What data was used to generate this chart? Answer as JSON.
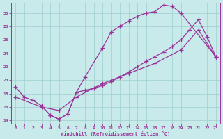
{
  "xlabel": "Windchill (Refroidissement éolien,°C)",
  "background_color": "#c8eaea",
  "grid_color": "#9ecece",
  "line_color": "#993399",
  "xlim": [
    -0.5,
    23.5
  ],
  "ylim": [
    13.5,
    31.5
  ],
  "xticks": [
    0,
    1,
    2,
    3,
    4,
    5,
    6,
    7,
    8,
    9,
    10,
    11,
    12,
    13,
    14,
    15,
    16,
    17,
    18,
    19,
    20,
    21,
    22,
    23
  ],
  "yticks": [
    14,
    16,
    18,
    20,
    22,
    24,
    26,
    28,
    30
  ],
  "series": [
    {
      "x": [
        0,
        1,
        2,
        3,
        4,
        5,
        6,
        7,
        8,
        10,
        11,
        12,
        13,
        14,
        15,
        16,
        17,
        18,
        19,
        23
      ],
      "y": [
        19.0,
        17.5,
        17.0,
        16.2,
        14.8,
        14.2,
        15.0,
        18.2,
        20.5,
        24.8,
        27.2,
        28.0,
        28.8,
        29.5,
        30.0,
        30.2,
        31.2,
        31.0,
        30.0,
        23.5
      ]
    },
    {
      "x": [
        3,
        4,
        5,
        6,
        7,
        8,
        9,
        10,
        11,
        12,
        13,
        14,
        15,
        16,
        17,
        18,
        19,
        20,
        21,
        22,
        23
      ],
      "y": [
        16.2,
        14.8,
        14.2,
        15.0,
        18.2,
        18.5,
        18.8,
        19.2,
        19.8,
        20.5,
        21.2,
        22.0,
        22.8,
        23.5,
        24.2,
        25.0,
        26.0,
        27.5,
        29.0,
        26.5,
        23.5
      ]
    },
    {
      "x": [
        0,
        3,
        5,
        7,
        10,
        13,
        16,
        19,
        21,
        23
      ],
      "y": [
        17.5,
        16.0,
        15.5,
        17.5,
        19.5,
        21.0,
        22.5,
        24.5,
        27.5,
        23.5
      ]
    }
  ]
}
